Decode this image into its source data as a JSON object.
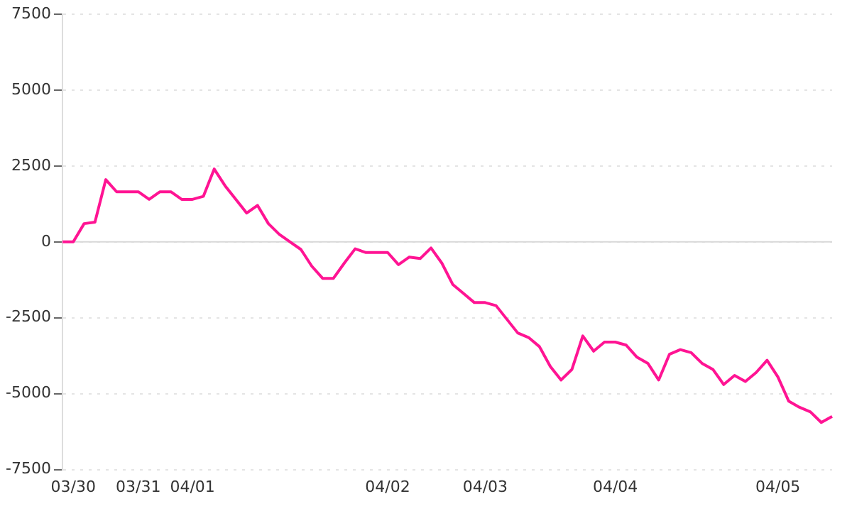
{
  "chart_data": {
    "type": "line",
    "categories": [
      null,
      "03/30",
      null,
      null,
      null,
      null,
      null,
      "03/31",
      null,
      null,
      null,
      null,
      "04/01",
      null,
      null,
      null,
      null,
      null,
      null,
      null,
      null,
      null,
      null,
      null,
      null,
      null,
      null,
      null,
      null,
      null,
      "04/02",
      null,
      null,
      null,
      null,
      null,
      null,
      null,
      null,
      "04/03",
      null,
      null,
      null,
      null,
      null,
      null,
      null,
      null,
      null,
      null,
      null,
      "04/04",
      null,
      null,
      null,
      null,
      null,
      null,
      null,
      null,
      null,
      null,
      null,
      null,
      null,
      null,
      "04/05",
      null,
      null,
      null,
      null,
      null
    ],
    "series": [
      {
        "color": "#ff1493",
        "values": [
          0,
          0,
          600,
          650,
          2050,
          1650,
          1650,
          1650,
          1400,
          1650,
          1650,
          1400,
          1400,
          1500,
          2400,
          1850,
          1400,
          950,
          1200,
          600,
          250,
          0,
          -250,
          -800,
          -1200,
          -1200,
          -700,
          -230,
          -350,
          -350,
          -350,
          -750,
          -500,
          -550,
          -200,
          -700,
          -1400,
          -1700,
          -2000,
          -2000,
          -2100,
          -2550,
          -3000,
          -3150,
          -3450,
          -4100,
          -4550,
          -4200,
          -3100,
          -3600,
          -3300,
          -3300,
          -3400,
          -3800,
          -4000,
          -4550,
          -3700,
          -3550,
          -3650,
          -4000,
          -4200,
          -4700,
          -4400,
          -4600,
          -4300,
          -3900,
          -4450,
          -5250,
          -5450,
          -5600,
          -5950,
          -5750
        ]
      }
    ],
    "ylim": [
      -7500,
      7500
    ],
    "yticks": [
      -7500,
      -5000,
      -2500,
      0,
      2500,
      5000,
      7500
    ],
    "ref_lines": [
      {
        "axis": "y",
        "value": 0,
        "color": "#d8d8d8",
        "line_style": "solid"
      }
    ],
    "grid": "y",
    "legend": false,
    "marker": "none",
    "line_style": "solid"
  }
}
